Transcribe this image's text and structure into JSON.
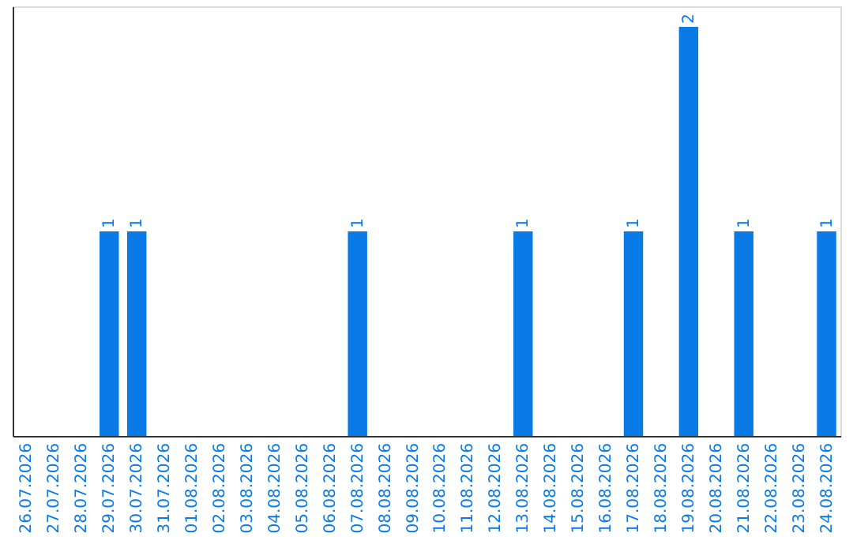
{
  "chart_data": {
    "type": "bar",
    "categories": [
      "26.07.2026",
      "27.07.2026",
      "28.07.2026",
      "29.07.2026",
      "30.07.2026",
      "31.07.2026",
      "01.08.2026",
      "02.08.2026",
      "03.08.2026",
      "04.08.2026",
      "05.08.2026",
      "06.08.2026",
      "07.08.2026",
      "08.08.2026",
      "09.08.2026",
      "10.08.2026",
      "11.08.2026",
      "12.08.2026",
      "13.08.2026",
      "14.08.2026",
      "15.08.2026",
      "16.08.2026",
      "17.08.2026",
      "18.08.2026",
      "19.08.2026",
      "20.08.2026",
      "21.08.2026",
      "22.08.2026",
      "23.08.2026",
      "24.08.2026"
    ],
    "values": [
      0,
      0,
      0,
      1,
      1,
      0,
      0,
      0,
      0,
      0,
      0,
      0,
      1,
      0,
      0,
      0,
      0,
      0,
      1,
      0,
      0,
      0,
      1,
      0,
      2,
      0,
      1,
      0,
      0,
      1
    ],
    "value_labels": [
      null,
      null,
      null,
      "1",
      "1",
      null,
      null,
      null,
      null,
      null,
      null,
      null,
      "1",
      null,
      null,
      null,
      null,
      null,
      "1",
      null,
      null,
      null,
      "1",
      null,
      "2",
      null,
      "1",
      null,
      null,
      "1"
    ],
    "color": "#0a7be6",
    "ylim": [
      0,
      2.1
    ],
    "tick_labels": "x",
    "grid": false
  }
}
